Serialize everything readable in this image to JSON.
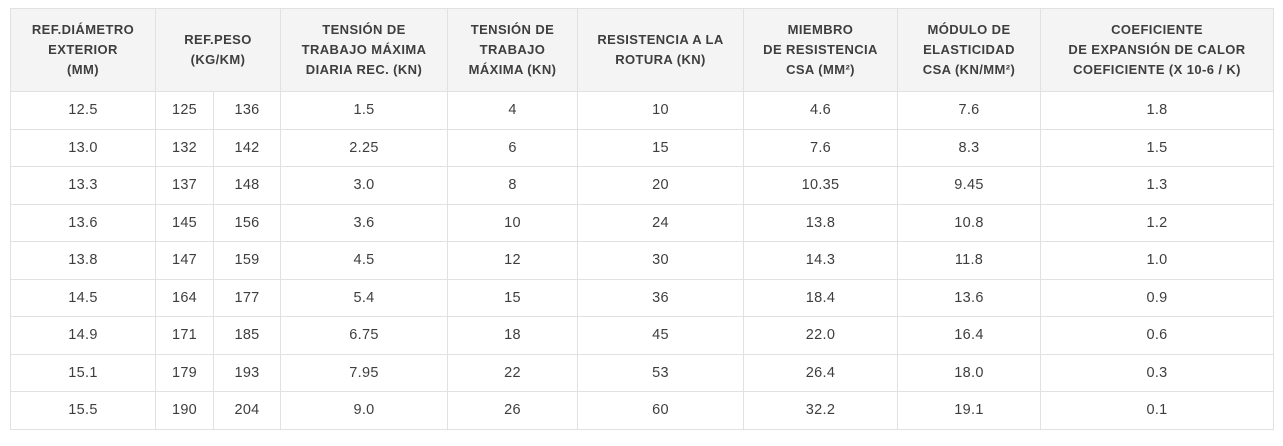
{
  "colors": {
    "page_background": "#ffffff",
    "header_background": "#f4f4f4",
    "row_background": "#ffffff",
    "border": "#e1e1e1",
    "text": "#3e3e3e"
  },
  "table": {
    "headers": [
      {
        "label": "REF.DIÁMETRO\nEXTERIOR\n(MM)",
        "colspan": "1"
      },
      {
        "label": "REF.PESO\n(KG/KM)",
        "colspan": "2"
      },
      {
        "label": "TENSIÓN DE\nTRABAJO MÁXIMA\nDIARIA REC. (KN)",
        "colspan": "1"
      },
      {
        "label": "TENSIÓN DE\nTRABAJO\nMÁXIMA (KN)",
        "colspan": "1"
      },
      {
        "label": "RESISTENCIA A LA\nROTURA (KN)",
        "colspan": "1"
      },
      {
        "label": "MIEMBRO\nDE RESISTENCIA\nCSA (MM²)",
        "colspan": "1"
      },
      {
        "label": "MÓDULO DE\nELASTICIDAD\nCSA (KN/MM²)",
        "colspan": "1"
      },
      {
        "label": "COEFICIENTE\nDE EXPANSIÓN DE CALOR\nCOEFICIENTE (X 10-6 / K)",
        "colspan": "1"
      }
    ],
    "rows": [
      [
        "12.5",
        "125",
        "136",
        "1.5",
        "4",
        "10",
        "4.6",
        "7.6",
        "1.8"
      ],
      [
        "13.0",
        "132",
        "142",
        "2.25",
        "6",
        "15",
        "7.6",
        "8.3",
        "1.5"
      ],
      [
        "13.3",
        "137",
        "148",
        "3.0",
        "8",
        "20",
        "10.35",
        "9.45",
        "1.3"
      ],
      [
        "13.6",
        "145",
        "156",
        "3.6",
        "10",
        "24",
        "13.8",
        "10.8",
        "1.2"
      ],
      [
        "13.8",
        "147",
        "159",
        "4.5",
        "12",
        "30",
        "14.3",
        "11.8",
        "1.0"
      ],
      [
        "14.5",
        "164",
        "177",
        "5.4",
        "15",
        "36",
        "18.4",
        "13.6",
        "0.9"
      ],
      [
        "14.9",
        "171",
        "185",
        "6.75",
        "18",
        "45",
        "22.0",
        "16.4",
        "0.6"
      ],
      [
        "15.1",
        "179",
        "193",
        "7.95",
        "22",
        "53",
        "26.4",
        "18.0",
        "0.3"
      ],
      [
        "15.5",
        "190",
        "204",
        "9.0",
        "26",
        "60",
        "32.2",
        "19.1",
        "0.1"
      ]
    ]
  },
  "chart_data": {
    "type": "table",
    "title": "Especificaciones de cable (tabla de datos)",
    "columns": [
      "REF.DIÁMETRO EXTERIOR (MM)",
      "REF.PESO (KG/KM) - min",
      "REF.PESO (KG/KM) - max",
      "TENSIÓN DE TRABAJO MÁXIMA DIARIA REC. (KN)",
      "TENSIÓN DE TRABAJO MÁXIMA (KN)",
      "RESISTENCIA A LA ROTURA (KN)",
      "MIEMBRO DE RESISTENCIA CSA (MM²)",
      "MÓDULO DE ELASTICIDAD CSA (KN/MM²)",
      "COEFICIENTE DE EXPANSIÓN DE CALOR COEFICIENTE (X 10-6 / K)"
    ],
    "rows": [
      [
        12.5,
        125,
        136,
        1.5,
        4,
        10,
        4.6,
        7.6,
        1.8
      ],
      [
        13.0,
        132,
        142,
        2.25,
        6,
        15,
        7.6,
        8.3,
        1.5
      ],
      [
        13.3,
        137,
        148,
        3.0,
        8,
        20,
        10.35,
        9.45,
        1.3
      ],
      [
        13.6,
        145,
        156,
        3.6,
        10,
        24,
        13.8,
        10.8,
        1.2
      ],
      [
        13.8,
        147,
        159,
        4.5,
        12,
        30,
        14.3,
        11.8,
        1.0
      ],
      [
        14.5,
        164,
        177,
        5.4,
        15,
        36,
        18.4,
        13.6,
        0.9
      ],
      [
        14.9,
        171,
        185,
        6.75,
        18,
        45,
        22.0,
        16.4,
        0.6
      ],
      [
        15.1,
        179,
        193,
        7.95,
        22,
        53,
        26.4,
        18.0,
        0.3
      ],
      [
        15.5,
        190,
        204,
        9.0,
        26,
        60,
        32.2,
        19.1,
        0.1
      ]
    ]
  }
}
